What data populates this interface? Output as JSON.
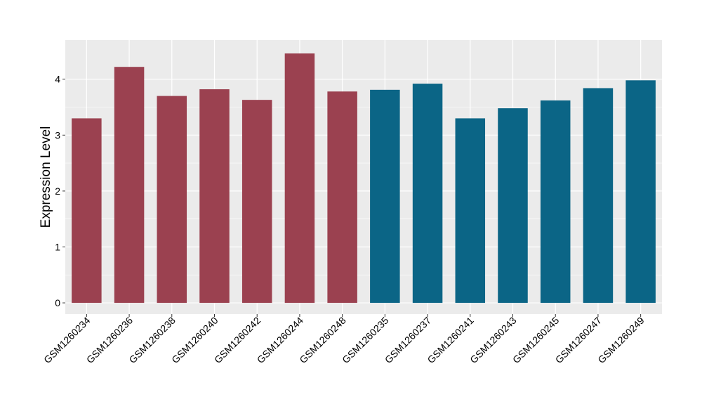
{
  "chart_data": {
    "type": "bar",
    "ylabel": "Expression Level",
    "ylim": [
      -0.2,
      4.7
    ],
    "yticks": [
      0,
      1,
      2,
      3,
      4
    ],
    "grid": true,
    "categories": [
      "GSM1260234",
      "GSM1260236",
      "GSM1260238",
      "GSM1260240",
      "GSM1260242",
      "GSM1260244",
      "GSM1260248",
      "GSM1260235",
      "GSM1260237",
      "GSM1260241",
      "GSM1260243",
      "GSM1260245",
      "GSM1260247",
      "GSM1260249"
    ],
    "values": [
      3.3,
      4.22,
      3.7,
      3.82,
      3.63,
      4.46,
      3.78,
      3.81,
      3.92,
      3.3,
      3.48,
      3.62,
      3.84,
      3.98
    ],
    "group_colors": [
      "#9b4150",
      "#9b4150",
      "#9b4150",
      "#9b4150",
      "#9b4150",
      "#9b4150",
      "#9b4150",
      "#0b6586",
      "#0b6586",
      "#0b6586",
      "#0b6586",
      "#0b6586",
      "#0b6586",
      "#0b6586"
    ],
    "panel_color": "#ebebeb",
    "grid_color": "#ffffff"
  }
}
